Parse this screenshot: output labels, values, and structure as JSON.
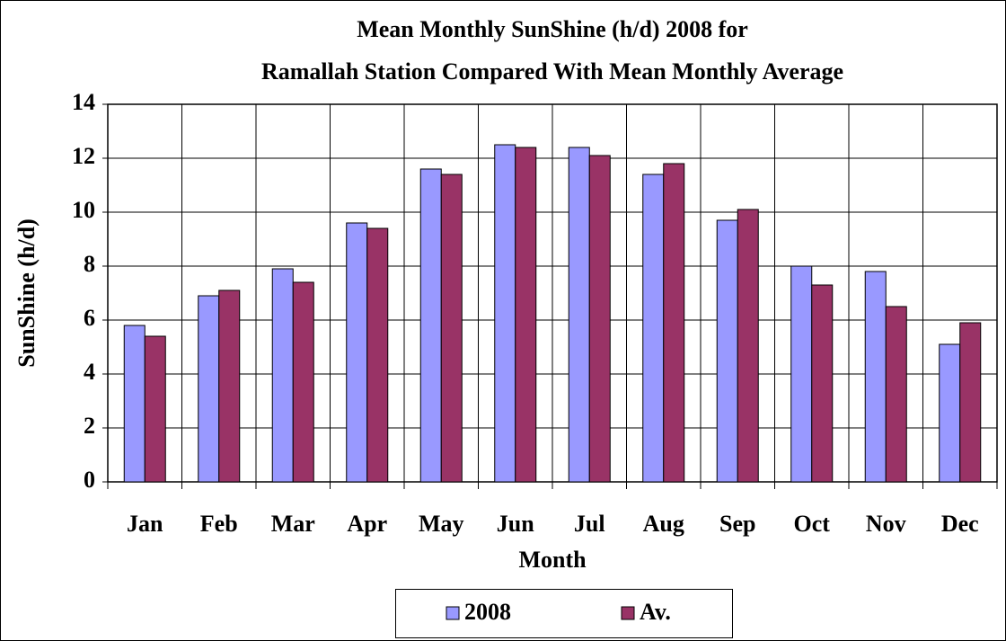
{
  "chart_data": {
    "type": "bar",
    "title": [
      "Mean Monthly SunShine (h/d) 2008 for",
      "Ramallah Station Compared With Mean Monthly Average"
    ],
    "x_label": "Month",
    "y_label": "SunShine (h/d)",
    "categories": [
      "Jan",
      "Feb",
      "Mar",
      "Apr",
      "May",
      "Jun",
      "Jul",
      "Aug",
      "Sep",
      "Oct",
      "Nov",
      "Dec"
    ],
    "series": [
      {
        "name": "2008",
        "color": "#9999ff",
        "values": [
          5.8,
          6.9,
          7.9,
          9.6,
          11.6,
          12.5,
          12.4,
          11.4,
          9.7,
          8.0,
          7.8,
          5.1
        ]
      },
      {
        "name": "Av.",
        "color": "#993366",
        "values": [
          5.4,
          7.1,
          7.4,
          9.4,
          11.4,
          12.4,
          12.1,
          11.8,
          10.1,
          7.3,
          6.5,
          5.9
        ]
      }
    ],
    "ylim": [
      0,
      14
    ],
    "yticks": [
      0,
      2,
      4,
      6,
      8,
      10,
      12,
      14
    ],
    "grid": true,
    "legend": "bottom"
  }
}
